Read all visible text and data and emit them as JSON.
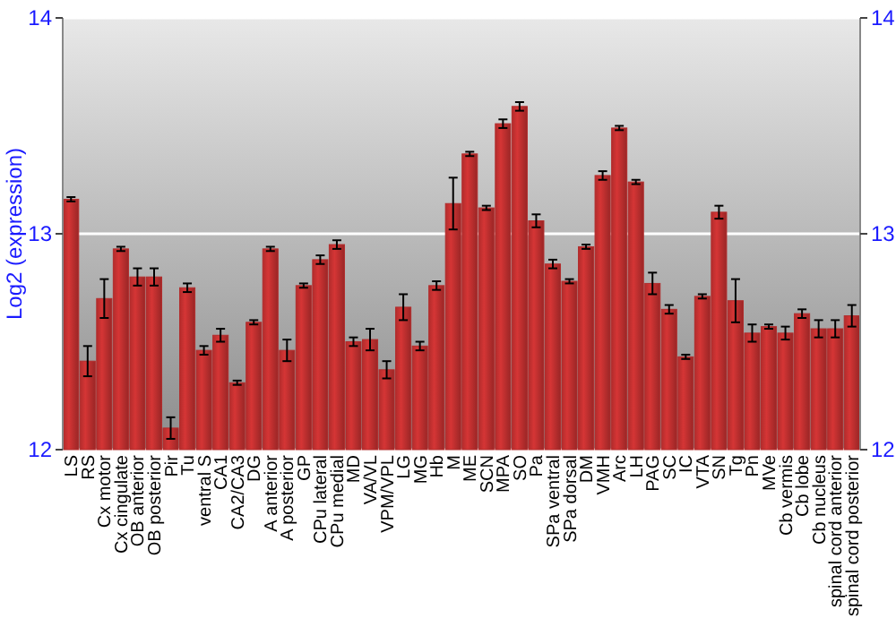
{
  "chart_data": {
    "type": "bar",
    "ylabel": "Log2 (expression)",
    "categories": [
      "LS",
      "RS",
      "Cx motor",
      "Cx cingulate",
      "OB anterior",
      "OB posterior",
      "Pir",
      "Tu",
      "ventral S",
      "CA1",
      "CA2/CA3",
      "DG",
      "A anterior",
      "A posterior",
      "GP",
      "CPu lateral",
      "CPu medial",
      "MD",
      "VA/VL",
      "VPM/VPL",
      "LG",
      "MG",
      "Hb",
      "M",
      "ME",
      "SCN",
      "MPA",
      "SO",
      "Pa",
      "SPa ventral",
      "SPa dorsal",
      "DM",
      "VMH",
      "Arc",
      "LH",
      "PAG",
      "SC",
      "IC",
      "VTA",
      "SN",
      "Tg",
      "Pn",
      "MVe",
      "Cb vermis",
      "Cb lobe",
      "Cb nucleus",
      "spinal cord anterior",
      "spinal cord posterior"
    ],
    "values": [
      13.16,
      12.41,
      12.7,
      12.93,
      12.8,
      12.8,
      12.1,
      12.75,
      12.46,
      12.53,
      12.31,
      12.59,
      12.93,
      12.46,
      12.76,
      12.88,
      12.95,
      12.5,
      12.51,
      12.37,
      12.66,
      12.48,
      12.76,
      13.14,
      13.37,
      13.12,
      13.51,
      13.59,
      13.06,
      12.86,
      12.78,
      12.94,
      13.27,
      13.49,
      13.24,
      12.77,
      12.65,
      12.43,
      12.71,
      13.1,
      12.69,
      12.54,
      12.57,
      12.54,
      12.63,
      12.56,
      12.56,
      12.62
    ],
    "errors": [
      0.01,
      0.07,
      0.09,
      0.01,
      0.04,
      0.04,
      0.05,
      0.02,
      0.02,
      0.03,
      0.01,
      0.01,
      0.01,
      0.05,
      0.01,
      0.02,
      0.02,
      0.02,
      0.05,
      0.04,
      0.06,
      0.02,
      0.02,
      0.12,
      0.01,
      0.01,
      0.02,
      0.02,
      0.03,
      0.02,
      0.01,
      0.01,
      0.02,
      0.01,
      0.01,
      0.05,
      0.02,
      0.01,
      0.01,
      0.03,
      0.1,
      0.04,
      0.01,
      0.03,
      0.02,
      0.04,
      0.04,
      0.05
    ],
    "color": "#b22c2c",
    "ylim": [
      12,
      14
    ],
    "yticks": [
      12,
      13,
      14
    ],
    "y2lim": [
      12,
      14
    ],
    "y2ticks": [
      12,
      13,
      14
    ],
    "grid": "y"
  }
}
